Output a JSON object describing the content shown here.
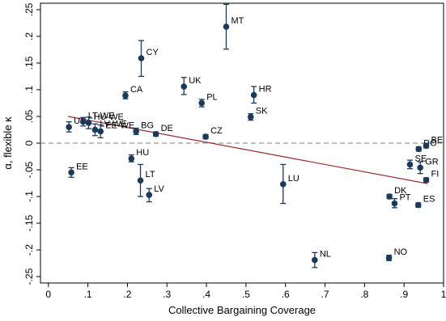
{
  "chart_data": {
    "type": "scatter",
    "xlabel": "Collective Bargaining Coverage",
    "ylabel": "α, flexible κ",
    "xlim": [
      -0.02,
      1.0
    ],
    "ylim": [
      -0.262,
      0.262
    ],
    "xticks": [
      {
        "value": 0,
        "label": "0"
      },
      {
        "value": 0.1,
        "label": ".1"
      },
      {
        "value": 0.2,
        "label": ".2"
      },
      {
        "value": 0.3,
        "label": ".3"
      },
      {
        "value": 0.4,
        "label": ".4"
      },
      {
        "value": 0.5,
        "label": ".5"
      },
      {
        "value": 0.6,
        "label": ".6"
      },
      {
        "value": 0.7,
        "label": ".7"
      },
      {
        "value": 0.8,
        "label": ".8"
      },
      {
        "value": 0.9,
        "label": ".9"
      },
      {
        "value": 1.0,
        "label": "1"
      }
    ],
    "yticks": [
      {
        "value": 0.25,
        "label": ".25"
      },
      {
        "value": 0.2,
        "label": ".2"
      },
      {
        "value": 0.15,
        "label": ".15"
      },
      {
        "value": 0.1,
        "label": ".1"
      },
      {
        "value": 0.05,
        "label": ".05"
      },
      {
        "value": 0,
        "label": "0"
      },
      {
        "value": -0.05,
        "label": "-.05"
      },
      {
        "value": -0.1,
        "label": "-.1"
      },
      {
        "value": -0.15,
        "label": "-.15"
      },
      {
        "value": -0.2,
        "label": "-.2"
      },
      {
        "value": -0.25,
        "label": "-.25"
      }
    ],
    "reference_line": {
      "y": 0,
      "style": "dashed",
      "color": "#999999"
    },
    "fit_line": {
      "x": [
        0.05,
        0.96
      ],
      "y": [
        0.05,
        -0.076
      ],
      "color": "#9b2a2a"
    },
    "grid": false,
    "points": [
      {
        "label": "MT",
        "x": 0.45,
        "y": 0.218,
        "lo": 0.176,
        "hi": 0.26
      },
      {
        "label": "CY",
        "x": 0.235,
        "y": 0.159,
        "lo": 0.125,
        "hi": 0.192
      },
      {
        "label": "UK",
        "x": 0.343,
        "y": 0.106,
        "lo": 0.091,
        "hi": 0.123
      },
      {
        "label": "CA",
        "x": 0.195,
        "y": 0.089,
        "lo": 0.083,
        "hi": 0.096
      },
      {
        "label": "PL",
        "x": 0.388,
        "y": 0.075,
        "lo": 0.068,
        "hi": 0.082
      },
      {
        "label": "HR",
        "x": 0.52,
        "y": 0.09,
        "lo": 0.075,
        "hi": 0.106
      },
      {
        "label": "SK",
        "x": 0.512,
        "y": 0.049,
        "lo": 0.043,
        "hi": 0.055
      },
      {
        "label": "US",
        "x": 0.052,
        "y": 0.03,
        "lo": 0.021,
        "hi": 0.04
      },
      {
        "label": "LT-WE",
        "x": 0.088,
        "y": 0.04,
        "lo": 0.032,
        "hi": 0.048
      },
      {
        "label": "HU-WE",
        "x": 0.102,
        "y": 0.038,
        "lo": 0.027,
        "hi": 0.049
      },
      {
        "label": "LV-WE",
        "x": 0.118,
        "y": 0.025,
        "lo": 0.014,
        "hi": 0.036
      },
      {
        "label": "EE-WE",
        "x": 0.132,
        "y": 0.022,
        "lo": 0.01,
        "hi": 0.034
      },
      {
        "label": "BG",
        "x": 0.222,
        "y": 0.022,
        "lo": 0.016,
        "hi": 0.028
      },
      {
        "label": "DE",
        "x": 0.272,
        "y": 0.017,
        "lo": 0.013,
        "hi": 0.021
      },
      {
        "label": "CZ",
        "x": 0.398,
        "y": 0.012,
        "lo": 0.008,
        "hi": 0.016
      },
      {
        "label": "EE",
        "x": 0.058,
        "y": -0.055,
        "lo": -0.064,
        "hi": -0.046
      },
      {
        "label": "HU",
        "x": 0.21,
        "y": -0.029,
        "lo": -0.035,
        "hi": -0.022
      },
      {
        "label": "LT",
        "x": 0.233,
        "y": -0.07,
        "lo": -0.1,
        "hi": -0.04
      },
      {
        "label": "LV",
        "x": 0.255,
        "y": -0.097,
        "lo": -0.11,
        "hi": -0.085
      },
      {
        "label": "LU",
        "x": 0.594,
        "y": -0.077,
        "lo": -0.113,
        "hi": -0.04
      },
      {
        "label": "NL",
        "x": 0.674,
        "y": -0.219,
        "lo": -0.233,
        "hi": -0.205
      },
      {
        "label": "NO",
        "x": 0.862,
        "y": -0.215,
        "lo": -0.22,
        "hi": -0.21
      },
      {
        "label": "DK",
        "x": 0.863,
        "y": -0.1,
        "lo": -0.104,
        "hi": -0.096
      },
      {
        "label": "PT",
        "x": 0.876,
        "y": -0.113,
        "lo": -0.121,
        "hi": -0.104
      },
      {
        "label": "ES",
        "x": 0.936,
        "y": -0.116,
        "lo": -0.12,
        "hi": -0.112
      },
      {
        "label": "SE",
        "x": 0.915,
        "y": -0.04,
        "lo": -0.048,
        "hi": -0.032
      },
      {
        "label": "GR",
        "x": 0.941,
        "y": -0.046,
        "lo": -0.057,
        "hi": -0.035
      },
      {
        "label": "FI",
        "x": 0.956,
        "y": -0.069,
        "lo": -0.073,
        "hi": -0.065
      },
      {
        "label": "RO",
        "x": 0.937,
        "y": -0.011,
        "lo": -0.015,
        "hi": -0.007
      },
      {
        "label": "BE",
        "x": 0.956,
        "y": -0.005,
        "lo": -0.009,
        "hi": -0.001
      }
    ]
  }
}
